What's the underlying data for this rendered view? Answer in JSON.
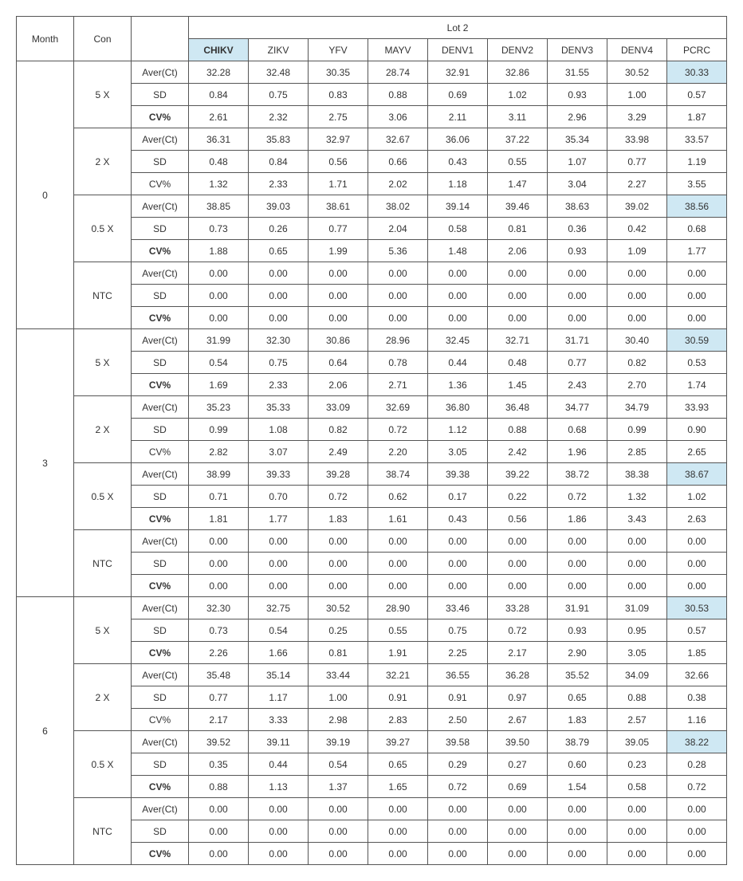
{
  "lot_title": "Lot 2",
  "headers": {
    "month": "Month",
    "con": "Con"
  },
  "columns": [
    "CHIKV",
    "ZIKV",
    "YFV",
    "MAYV",
    "DENV1",
    "DENV2",
    "DENV3",
    "DENV4",
    "PCRC"
  ],
  "column_highlight": [
    true,
    false,
    false,
    false,
    false,
    false,
    false,
    false,
    false
  ],
  "stats": [
    "Aver(Ct)",
    "SD",
    "CV%"
  ],
  "months": [
    {
      "label": "0",
      "cons": [
        {
          "label": "5 X",
          "cv_bold": true,
          "rows": [
            [
              "32.28",
              "32.48",
              "30.35",
              "28.74",
              "32.91",
              "32.86",
              "31.55",
              "30.52",
              "30.33"
            ],
            [
              "0.84",
              "0.75",
              "0.83",
              "0.88",
              "0.69",
              "1.02",
              "0.93",
              "1.00",
              "0.57"
            ],
            [
              "2.61",
              "2.32",
              "2.75",
              "3.06",
              "2.11",
              "3.11",
              "2.96",
              "3.29",
              "1.87"
            ]
          ],
          "highlight": [
            [
              false,
              false,
              false,
              false,
              false,
              false,
              false,
              false,
              true
            ],
            [
              false,
              false,
              false,
              false,
              false,
              false,
              false,
              false,
              false
            ],
            [
              false,
              false,
              false,
              false,
              false,
              false,
              false,
              false,
              false
            ]
          ]
        },
        {
          "label": "2 X",
          "cv_bold": false,
          "rows": [
            [
              "36.31",
              "35.83",
              "32.97",
              "32.67",
              "36.06",
              "37.22",
              "35.34",
              "33.98",
              "33.57"
            ],
            [
              "0.48",
              "0.84",
              "0.56",
              "0.66",
              "0.43",
              "0.55",
              "1.07",
              "0.77",
              "1.19"
            ],
            [
              "1.32",
              "2.33",
              "1.71",
              "2.02",
              "1.18",
              "1.47",
              "3.04",
              "2.27",
              "3.55"
            ]
          ],
          "highlight": [
            [
              false,
              false,
              false,
              false,
              false,
              false,
              false,
              false,
              false
            ],
            [
              false,
              false,
              false,
              false,
              false,
              false,
              false,
              false,
              false
            ],
            [
              false,
              false,
              false,
              false,
              false,
              false,
              false,
              false,
              false
            ]
          ]
        },
        {
          "label": "0.5 X",
          "cv_bold": true,
          "rows": [
            [
              "38.85",
              "39.03",
              "38.61",
              "38.02",
              "39.14",
              "39.46",
              "38.63",
              "39.02",
              "38.56"
            ],
            [
              "0.73",
              "0.26",
              "0.77",
              "2.04",
              "0.58",
              "0.81",
              "0.36",
              "0.42",
              "0.68"
            ],
            [
              "1.88",
              "0.65",
              "1.99",
              "5.36",
              "1.48",
              "2.06",
              "0.93",
              "1.09",
              "1.77"
            ]
          ],
          "highlight": [
            [
              false,
              false,
              false,
              false,
              false,
              false,
              false,
              false,
              true
            ],
            [
              false,
              false,
              false,
              false,
              false,
              false,
              false,
              false,
              false
            ],
            [
              false,
              false,
              false,
              false,
              false,
              false,
              false,
              false,
              false
            ]
          ]
        },
        {
          "label": "NTC",
          "cv_bold": true,
          "rows": [
            [
              "0.00",
              "0.00",
              "0.00",
              "0.00",
              "0.00",
              "0.00",
              "0.00",
              "0.00",
              "0.00"
            ],
            [
              "0.00",
              "0.00",
              "0.00",
              "0.00",
              "0.00",
              "0.00",
              "0.00",
              "0.00",
              "0.00"
            ],
            [
              "0.00",
              "0.00",
              "0.00",
              "0.00",
              "0.00",
              "0.00",
              "0.00",
              "0.00",
              "0.00"
            ]
          ],
          "highlight": [
            [
              false,
              false,
              false,
              false,
              false,
              false,
              false,
              false,
              false
            ],
            [
              false,
              false,
              false,
              false,
              false,
              false,
              false,
              false,
              false
            ],
            [
              false,
              false,
              false,
              false,
              false,
              false,
              false,
              false,
              false
            ]
          ]
        }
      ]
    },
    {
      "label": "3",
      "cons": [
        {
          "label": "5 X",
          "cv_bold": true,
          "rows": [
            [
              "31.99",
              "32.30",
              "30.86",
              "28.96",
              "32.45",
              "32.71",
              "31.71",
              "30.40",
              "30.59"
            ],
            [
              "0.54",
              "0.75",
              "0.64",
              "0.78",
              "0.44",
              "0.48",
              "0.77",
              "0.82",
              "0.53"
            ],
            [
              "1.69",
              "2.33",
              "2.06",
              "2.71",
              "1.36",
              "1.45",
              "2.43",
              "2.70",
              "1.74"
            ]
          ],
          "highlight": [
            [
              false,
              false,
              false,
              false,
              false,
              false,
              false,
              false,
              true
            ],
            [
              false,
              false,
              false,
              false,
              false,
              false,
              false,
              false,
              false
            ],
            [
              false,
              false,
              false,
              false,
              false,
              false,
              false,
              false,
              false
            ]
          ]
        },
        {
          "label": "2 X",
          "cv_bold": false,
          "rows": [
            [
              "35.23",
              "35.33",
              "33.09",
              "32.69",
              "36.80",
              "36.48",
              "34.77",
              "34.79",
              "33.93"
            ],
            [
              "0.99",
              "1.08",
              "0.82",
              "0.72",
              "1.12",
              "0.88",
              "0.68",
              "0.99",
              "0.90"
            ],
            [
              "2.82",
              "3.07",
              "2.49",
              "2.20",
              "3.05",
              "2.42",
              "1.96",
              "2.85",
              "2.65"
            ]
          ],
          "highlight": [
            [
              false,
              false,
              false,
              false,
              false,
              false,
              false,
              false,
              false
            ],
            [
              false,
              false,
              false,
              false,
              false,
              false,
              false,
              false,
              false
            ],
            [
              false,
              false,
              false,
              false,
              false,
              false,
              false,
              false,
              false
            ]
          ]
        },
        {
          "label": "0.5 X",
          "cv_bold": true,
          "rows": [
            [
              "38.99",
              "39.33",
              "39.28",
              "38.74",
              "39.38",
              "39.22",
              "38.72",
              "38.38",
              "38.67"
            ],
            [
              "0.71",
              "0.70",
              "0.72",
              "0.62",
              "0.17",
              "0.22",
              "0.72",
              "1.32",
              "1.02"
            ],
            [
              "1.81",
              "1.77",
              "1.83",
              "1.61",
              "0.43",
              "0.56",
              "1.86",
              "3.43",
              "2.63"
            ]
          ],
          "highlight": [
            [
              false,
              false,
              false,
              false,
              false,
              false,
              false,
              false,
              true
            ],
            [
              false,
              false,
              false,
              false,
              false,
              false,
              false,
              false,
              false
            ],
            [
              false,
              false,
              false,
              false,
              false,
              false,
              false,
              false,
              false
            ]
          ]
        },
        {
          "label": "NTC",
          "cv_bold": true,
          "rows": [
            [
              "0.00",
              "0.00",
              "0.00",
              "0.00",
              "0.00",
              "0.00",
              "0.00",
              "0.00",
              "0.00"
            ],
            [
              "0.00",
              "0.00",
              "0.00",
              "0.00",
              "0.00",
              "0.00",
              "0.00",
              "0.00",
              "0.00"
            ],
            [
              "0.00",
              "0.00",
              "0.00",
              "0.00",
              "0.00",
              "0.00",
              "0.00",
              "0.00",
              "0.00"
            ]
          ],
          "highlight": [
            [
              false,
              false,
              false,
              false,
              false,
              false,
              false,
              false,
              false
            ],
            [
              false,
              false,
              false,
              false,
              false,
              false,
              false,
              false,
              false
            ],
            [
              false,
              false,
              false,
              false,
              false,
              false,
              false,
              false,
              false
            ]
          ]
        }
      ]
    },
    {
      "label": "6",
      "cons": [
        {
          "label": "5 X",
          "cv_bold": true,
          "rows": [
            [
              "32.30",
              "32.75",
              "30.52",
              "28.90",
              "33.46",
              "33.28",
              "31.91",
              "31.09",
              "30.53"
            ],
            [
              "0.73",
              "0.54",
              "0.25",
              "0.55",
              "0.75",
              "0.72",
              "0.93",
              "0.95",
              "0.57"
            ],
            [
              "2.26",
              "1.66",
              "0.81",
              "1.91",
              "2.25",
              "2.17",
              "2.90",
              "3.05",
              "1.85"
            ]
          ],
          "highlight": [
            [
              false,
              false,
              false,
              false,
              false,
              false,
              false,
              false,
              true
            ],
            [
              false,
              false,
              false,
              false,
              false,
              false,
              false,
              false,
              false
            ],
            [
              false,
              false,
              false,
              false,
              false,
              false,
              false,
              false,
              false
            ]
          ]
        },
        {
          "label": "2 X",
          "cv_bold": false,
          "rows": [
            [
              "35.48",
              "35.14",
              "33.44",
              "32.21",
              "36.55",
              "36.28",
              "35.52",
              "34.09",
              "32.66"
            ],
            [
              "0.77",
              "1.17",
              "1.00",
              "0.91",
              "0.91",
              "0.97",
              "0.65",
              "0.88",
              "0.38"
            ],
            [
              "2.17",
              "3.33",
              "2.98",
              "2.83",
              "2.50",
              "2.67",
              "1.83",
              "2.57",
              "1.16"
            ]
          ],
          "highlight": [
            [
              false,
              false,
              false,
              false,
              false,
              false,
              false,
              false,
              false
            ],
            [
              false,
              false,
              false,
              false,
              false,
              false,
              false,
              false,
              false
            ],
            [
              false,
              false,
              false,
              false,
              false,
              false,
              false,
              false,
              false
            ]
          ]
        },
        {
          "label": "0.5 X",
          "cv_bold": true,
          "rows": [
            [
              "39.52",
              "39.11",
              "39.19",
              "39.27",
              "39.58",
              "39.50",
              "38.79",
              "39.05",
              "38.22"
            ],
            [
              "0.35",
              "0.44",
              "0.54",
              "0.65",
              "0.29",
              "0.27",
              "0.60",
              "0.23",
              "0.28"
            ],
            [
              "0.88",
              "1.13",
              "1.37",
              "1.65",
              "0.72",
              "0.69",
              "1.54",
              "0.58",
              "0.72"
            ]
          ],
          "highlight": [
            [
              false,
              false,
              false,
              false,
              false,
              false,
              false,
              false,
              true
            ],
            [
              false,
              false,
              false,
              false,
              false,
              false,
              false,
              false,
              false
            ],
            [
              false,
              false,
              false,
              false,
              false,
              false,
              false,
              false,
              false
            ]
          ]
        },
        {
          "label": "NTC",
          "cv_bold": true,
          "rows": [
            [
              "0.00",
              "0.00",
              "0.00",
              "0.00",
              "0.00",
              "0.00",
              "0.00",
              "0.00",
              "0.00"
            ],
            [
              "0.00",
              "0.00",
              "0.00",
              "0.00",
              "0.00",
              "0.00",
              "0.00",
              "0.00",
              "0.00"
            ],
            [
              "0.00",
              "0.00",
              "0.00",
              "0.00",
              "0.00",
              "0.00",
              "0.00",
              "0.00",
              "0.00"
            ]
          ],
          "highlight": [
            [
              false,
              false,
              false,
              false,
              false,
              false,
              false,
              false,
              false
            ],
            [
              false,
              false,
              false,
              false,
              false,
              false,
              false,
              false,
              false
            ],
            [
              false,
              false,
              false,
              false,
              false,
              false,
              false,
              false,
              false
            ]
          ]
        }
      ]
    }
  ]
}
